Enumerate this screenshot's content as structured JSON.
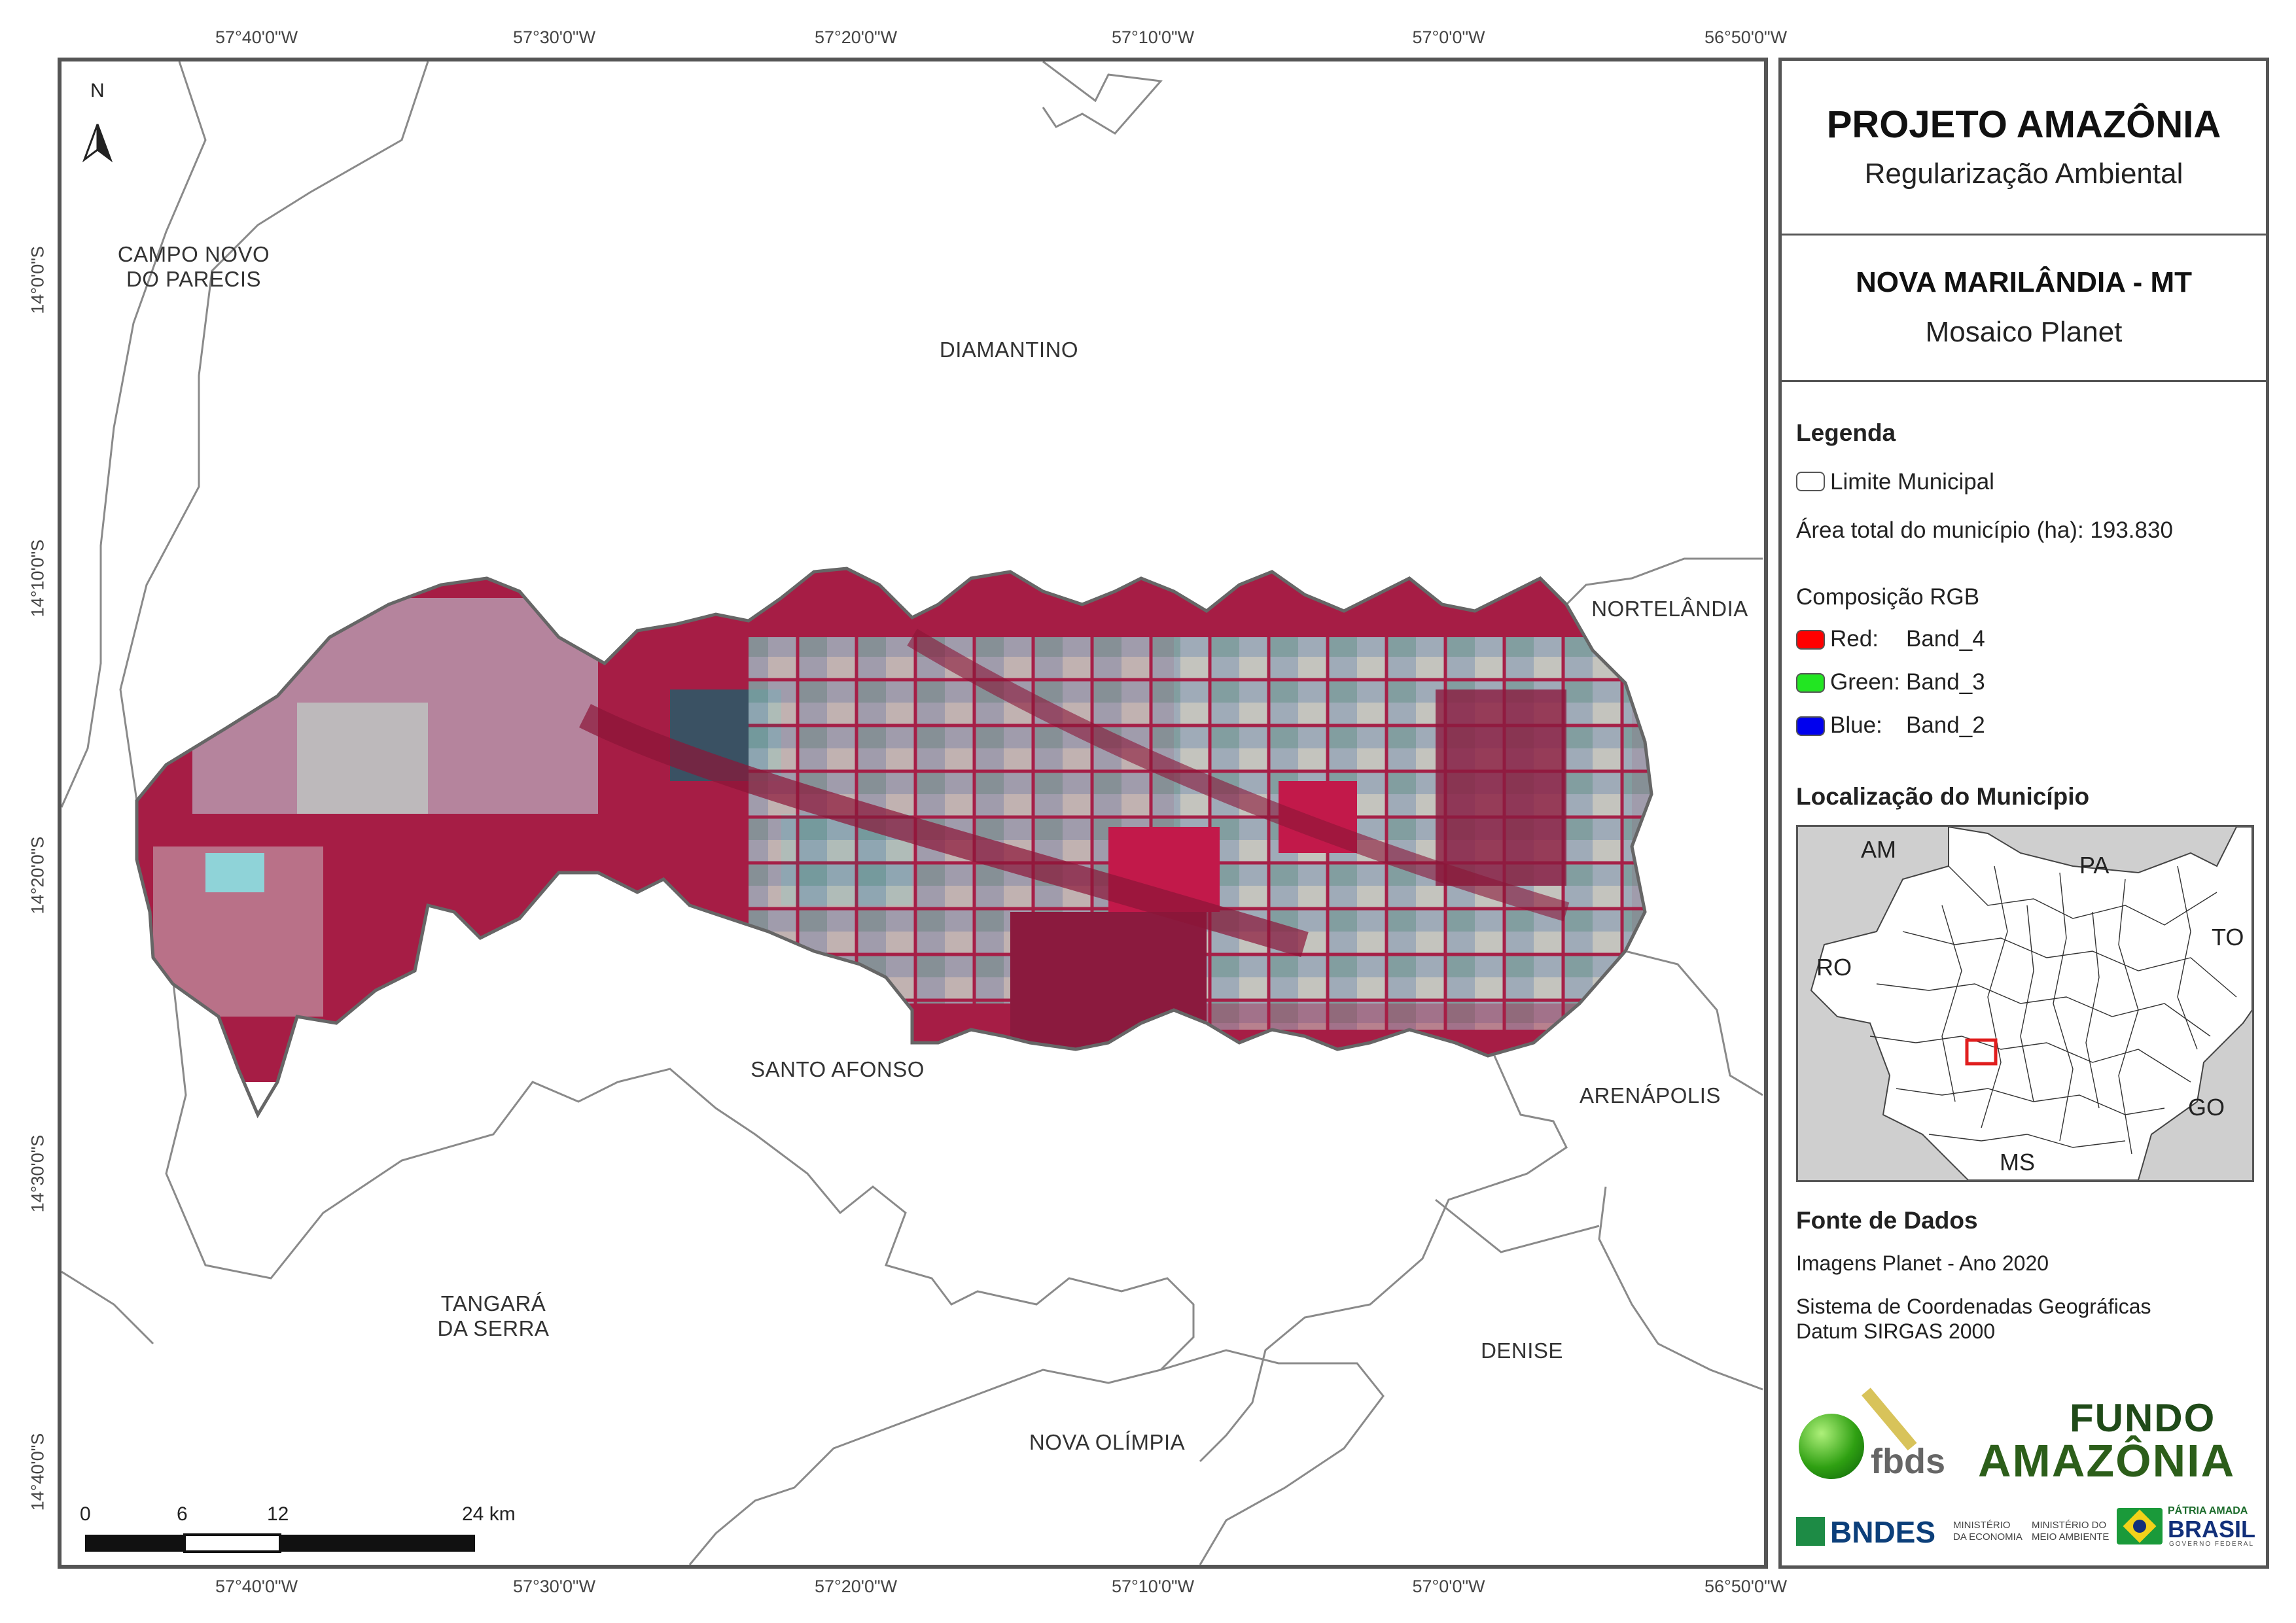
{
  "map": {
    "lon_ticks": [
      "57°40'0\"W",
      "57°30'0\"W",
      "57°20'0\"W",
      "57°10'0\"W",
      "57°0'0\"W",
      "56°50'0\"W"
    ],
    "lat_ticks": [
      "14°0'0\"S",
      "14°10'0\"S",
      "14°20'0\"S",
      "14°30'0\"S",
      "14°40'0\"S"
    ],
    "north_label": "N",
    "municipalities": {
      "campo_novo": "CAMPO NOVO\nDO PARECIS",
      "diamantino": "DIAMANTINO",
      "nortelandia": "NORTELÂNDIA",
      "santo_afonso": "SANTO AFONSO",
      "arenapolis": "ARENÁPOLIS",
      "tangara": "TANGARÁ\nDA SERRA",
      "denise": "DENISE",
      "nova_olimpia": "NOVA OLÍMPIA"
    },
    "scale_bar": {
      "labels": [
        "0",
        "6",
        "12",
        "24 km"
      ]
    }
  },
  "panel": {
    "title": "PROJETO AMAZÔNIA",
    "subtitle": "Regularização Ambiental",
    "municipality": "NOVA MARILÂNDIA - MT",
    "product": "Mosaico Planet",
    "legend_title": "Legenda",
    "legend_limit": "Limite Municipal",
    "area_label": "Área total do município (ha): 193.830",
    "rgb_title": "Composição RGB",
    "rgb": [
      {
        "label": "Red:",
        "band": "Band_4",
        "color": "#ff0000"
      },
      {
        "label": "Green:",
        "band": "Band_3",
        "color": "#22e622"
      },
      {
        "label": "Blue:",
        "band": "Band_2",
        "color": "#0000ee"
      }
    ],
    "location_title": "Localização do Município",
    "inset_labels": {
      "am": "AM",
      "pa": "PA",
      "to": "TO",
      "ro": "RO",
      "go": "GO",
      "ms": "MS"
    },
    "source_title": "Fonte de Dados",
    "source_line": "Imagens Planet - Ano 2020",
    "crs_line1": "Sistema de Coordenadas Geográficas",
    "crs_line2": "Datum SIRGAS 2000",
    "logos": {
      "fbds": "fbds",
      "fundo": "FUNDO",
      "amazonia": "AMAZÔNIA",
      "bndes": "BNDES",
      "min_economia": "MINISTÉRIO DA ECONOMIA",
      "min_meio": "MINISTÉRIO DO MEIO AMBIENTE",
      "patria": "PÁTRIA AMADA",
      "brasil": "BRASIL",
      "gov": "GOVERNO FEDERAL"
    },
    "colors": {
      "accent_red": "#e01e1e",
      "frame": "#555555"
    }
  }
}
